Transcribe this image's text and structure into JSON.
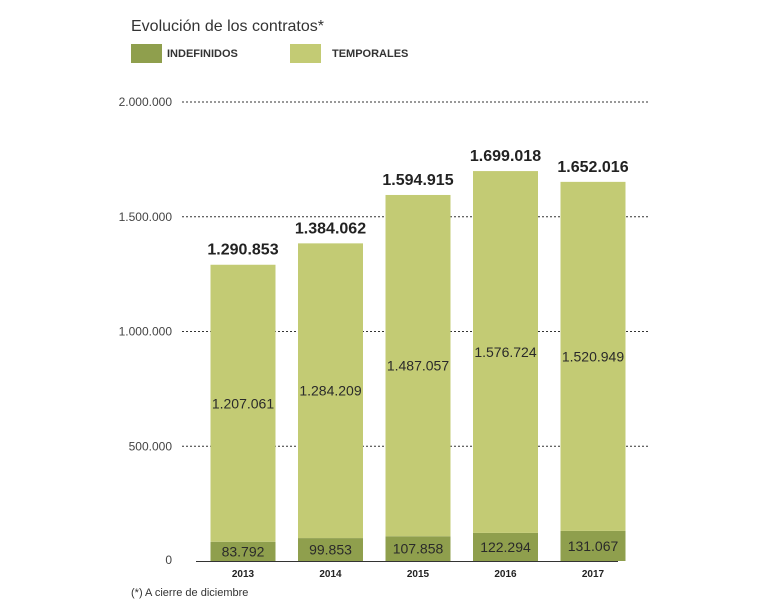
{
  "chart_data": {
    "type": "bar",
    "stacked": true,
    "title": "Evolución de los contratos*",
    "categories": [
      "2013",
      "2014",
      "2015",
      "2016",
      "2017"
    ],
    "series": [
      {
        "name": "INDEFINIDOS",
        "color": "#8f9f4d",
        "values": [
          83792,
          99853,
          107858,
          122294,
          131067
        ],
        "labels": [
          "83.792",
          "99.853",
          "107.858",
          "122.294",
          "131.067"
        ]
      },
      {
        "name": "TEMPORALES",
        "color": "#c3cb74",
        "values": [
          1207061,
          1284209,
          1487057,
          1576724,
          1520949
        ],
        "labels": [
          "1.207.061",
          "1.284.209",
          "1.487.057",
          "1.576.724",
          "1.520.949"
        ]
      }
    ],
    "totals": [
      1290853,
      1384062,
      1594915,
      1699018,
      1652016
    ],
    "total_labels": [
      "1.290.853",
      "1.384.062",
      "1.594.915",
      "1.699.018",
      "1.652.016"
    ],
    "ylim": [
      0,
      2000000
    ],
    "yticks": [
      0,
      500000,
      1000000,
      1500000,
      2000000
    ],
    "ytick_labels": [
      "0",
      "500.000",
      "1.000.000",
      "1.500.000",
      "2.000.000"
    ],
    "grid": true,
    "legend": "top-left",
    "footnote": "(*) A cierre de diciembre"
  }
}
